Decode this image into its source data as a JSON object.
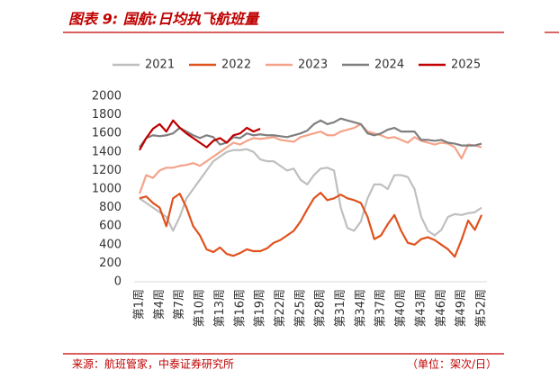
{
  "chart_data": {
    "type": "line",
    "title": "图表 9:  国航:日均执飞航班量",
    "source": "来源：航班管家，中泰证券研究所",
    "unit": "（单位：架次/日）",
    "categories": [
      "第1周",
      null,
      null,
      "第4周",
      null,
      null,
      "第7周",
      null,
      null,
      "第10周",
      null,
      null,
      "第13周",
      null,
      null,
      "第16周",
      null,
      null,
      "第19周",
      null,
      null,
      "第22周",
      null,
      null,
      "第25周",
      null,
      null,
      "第28周",
      null,
      null,
      "第31周",
      null,
      null,
      "第34周",
      null,
      null,
      "第37周",
      null,
      null,
      "第40周",
      null,
      null,
      "第43周",
      null,
      null,
      "第46周",
      null,
      null,
      "第49周",
      null,
      null,
      "第52周"
    ],
    "ylim": [
      0,
      2000
    ],
    "yticks": [
      0,
      200,
      400,
      600,
      800,
      1000,
      1200,
      1400,
      1600,
      1800,
      2000
    ],
    "series": [
      {
        "name": "2021",
        "color": "#bfbfbf",
        "values": [
          900,
          850,
          800,
          750,
          700,
          550,
          700,
          900,
          1000,
          1100,
          1200,
          1300,
          1350,
          1400,
          1420,
          1420,
          1430,
          1400,
          1320,
          1300,
          1300,
          1250,
          1200,
          1220,
          1100,
          1050,
          1150,
          1220,
          1230,
          1200,
          800,
          580,
          550,
          650,
          900,
          1050,
          1050,
          1000,
          1150,
          1150,
          1130,
          1000,
          700,
          550,
          500,
          560,
          700,
          730,
          720,
          740,
          750,
          800
        ]
      },
      {
        "name": "2022",
        "color": "#e0521d",
        "values": [
          900,
          920,
          850,
          800,
          600,
          900,
          950,
          800,
          600,
          500,
          350,
          320,
          370,
          300,
          280,
          310,
          350,
          330,
          330,
          360,
          420,
          450,
          500,
          550,
          650,
          780,
          900,
          960,
          880,
          900,
          940,
          900,
          880,
          850,
          700,
          460,
          500,
          620,
          720,
          550,
          420,
          400,
          460,
          480,
          450,
          400,
          350,
          270,
          450,
          660,
          560,
          720
        ]
      },
      {
        "name": "2023",
        "color": "#f4a38a",
        "values": [
          950,
          1150,
          1120,
          1200,
          1230,
          1230,
          1250,
          1260,
          1280,
          1250,
          1300,
          1350,
          1400,
          1450,
          1500,
          1480,
          1520,
          1550,
          1540,
          1550,
          1560,
          1530,
          1520,
          1510,
          1560,
          1580,
          1600,
          1620,
          1580,
          1580,
          1620,
          1640,
          1660,
          1700,
          1620,
          1600,
          1580,
          1550,
          1560,
          1530,
          1500,
          1560,
          1520,
          1500,
          1480,
          1500,
          1490,
          1450,
          1330,
          1480,
          1470,
          1450
        ]
      },
      {
        "name": "2024",
        "color": "#7f7f7f",
        "values": [
          1450,
          1550,
          1580,
          1570,
          1580,
          1600,
          1660,
          1620,
          1580,
          1550,
          1580,
          1560,
          1480,
          1500,
          1560,
          1550,
          1600,
          1580,
          1590,
          1580,
          1580,
          1570,
          1560,
          1580,
          1600,
          1630,
          1700,
          1740,
          1700,
          1720,
          1760,
          1740,
          1720,
          1700,
          1600,
          1580,
          1600,
          1640,
          1660,
          1620,
          1620,
          1620,
          1530,
          1530,
          1520,
          1530,
          1500,
          1490,
          1470,
          1470,
          1470,
          1490
        ]
      },
      {
        "name": "2025",
        "color": "#c00000",
        "values": [
          1420,
          1550,
          1650,
          1700,
          1620,
          1740,
          1660,
          1600,
          1550,
          1500,
          1450,
          1520,
          1550,
          1500,
          1580,
          1600,
          1660,
          1620,
          1650,
          null,
          null,
          null,
          null,
          null,
          null,
          null,
          null,
          null,
          null,
          null,
          null,
          null,
          null,
          null,
          null,
          null,
          null,
          null,
          null,
          null,
          null,
          null,
          null,
          null,
          null,
          null,
          null,
          null,
          null,
          null,
          null,
          null
        ]
      }
    ]
  }
}
